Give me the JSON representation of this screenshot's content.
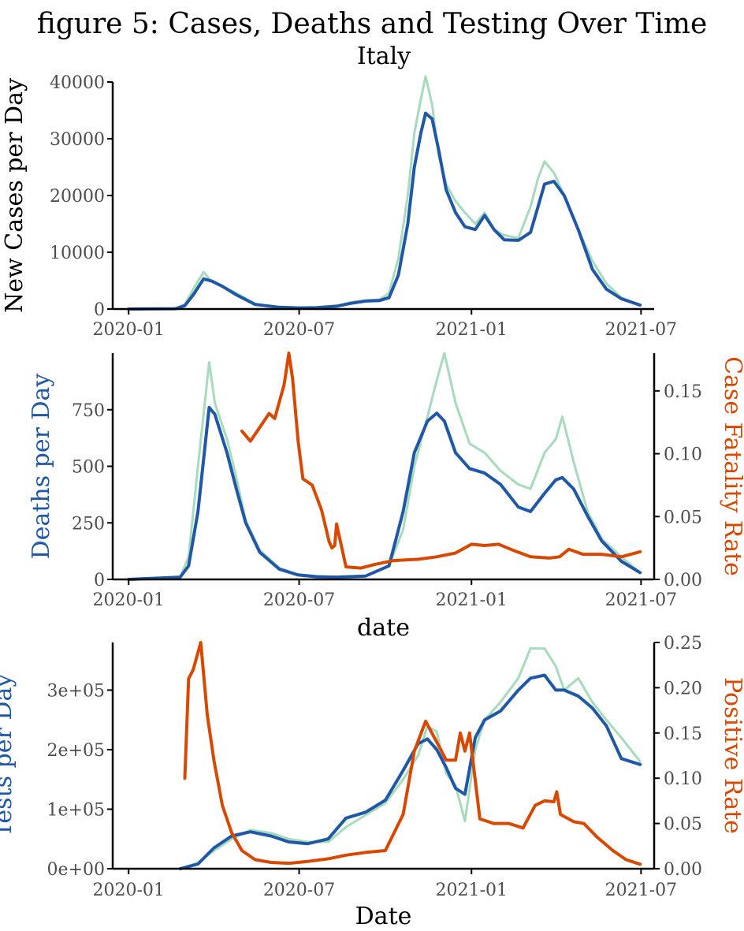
{
  "title": "figure 5: Cases, Deaths and Testing Over Time",
  "subtitle": "Italy",
  "colors": {
    "raw": "#a6dbbb",
    "smooth": "#2058a8",
    "rate": "#d94801",
    "axis": "#000000",
    "tick_text": "#4d4d4d"
  },
  "chart_data": [
    {
      "type": "line",
      "id": "cases",
      "xlabel": "",
      "ylabel": "New Cases per Day",
      "x_ticks": [
        "2020-01",
        "2020-07",
        "2021-01",
        "2021-07"
      ],
      "x_tick_dates": [
        "2020-01-01",
        "2020-07-01",
        "2021-01-01",
        "2021-07-01"
      ],
      "xlim": [
        "2019-12-15",
        "2021-07-15"
      ],
      "ylim": [
        0,
        40000
      ],
      "y_ticks": [
        0,
        10000,
        20000,
        30000,
        40000
      ],
      "y_tick_labels": [
        "0",
        "10000",
        "20000",
        "30000",
        "40000"
      ],
      "grid": false,
      "series": [
        {
          "role": "raw",
          "x": [
            "2020-01-01",
            "2020-02-20",
            "2020-03-01",
            "2020-03-10",
            "2020-03-21",
            "2020-03-30",
            "2020-04-10",
            "2020-04-25",
            "2020-05-15",
            "2020-06-10",
            "2020-07-01",
            "2020-07-20",
            "2020-08-10",
            "2020-08-25",
            "2020-09-10",
            "2020-09-25",
            "2020-10-05",
            "2020-10-15",
            "2020-10-25",
            "2020-11-01",
            "2020-11-08",
            "2020-11-13",
            "2020-11-20",
            "2020-11-27",
            "2020-12-05",
            "2020-12-15",
            "2020-12-25",
            "2021-01-05",
            "2021-01-15",
            "2021-01-25",
            "2021-02-05",
            "2021-02-20",
            "2021-03-05",
            "2021-03-13",
            "2021-03-20",
            "2021-03-30",
            "2021-04-10",
            "2021-04-25",
            "2021-05-10",
            "2021-05-25",
            "2021-06-10",
            "2021-06-30"
          ],
          "y": [
            0,
            50,
            800,
            3500,
            6500,
            4800,
            4000,
            2800,
            900,
            300,
            200,
            250,
            500,
            1200,
            1500,
            1700,
            2800,
            9000,
            20000,
            31000,
            37000,
            41000,
            36000,
            27000,
            22000,
            19000,
            17000,
            15000,
            17000,
            14000,
            13000,
            12500,
            18000,
            23000,
            26000,
            24000,
            20000,
            14000,
            8500,
            4500,
            2000,
            600
          ]
        },
        {
          "role": "smooth",
          "x": [
            "2020-01-01",
            "2020-02-20",
            "2020-03-01",
            "2020-03-10",
            "2020-03-21",
            "2020-03-30",
            "2020-04-10",
            "2020-04-25",
            "2020-05-15",
            "2020-06-10",
            "2020-07-01",
            "2020-07-20",
            "2020-08-10",
            "2020-08-25",
            "2020-09-10",
            "2020-09-25",
            "2020-10-05",
            "2020-10-15",
            "2020-10-25",
            "2020-11-01",
            "2020-11-08",
            "2020-11-13",
            "2020-11-20",
            "2020-11-27",
            "2020-12-05",
            "2020-12-15",
            "2020-12-25",
            "2021-01-05",
            "2021-01-15",
            "2021-01-25",
            "2021-02-05",
            "2021-02-20",
            "2021-03-05",
            "2021-03-13",
            "2021-03-20",
            "2021-03-30",
            "2021-04-10",
            "2021-04-25",
            "2021-05-10",
            "2021-05-25",
            "2021-06-10",
            "2021-06-30"
          ],
          "y": [
            0,
            50,
            600,
            2500,
            5300,
            4900,
            4000,
            2500,
            800,
            300,
            200,
            250,
            500,
            1000,
            1400,
            1500,
            2000,
            6000,
            15000,
            25000,
            31000,
            34500,
            33500,
            28000,
            21000,
            17000,
            14500,
            14000,
            16500,
            14000,
            12200,
            12100,
            13500,
            18000,
            22000,
            22500,
            20000,
            14000,
            7000,
            3500,
            1800,
            700
          ]
        }
      ]
    },
    {
      "type": "line",
      "id": "deaths",
      "xlabel": "date",
      "ylabel": "Deaths per Day",
      "ylabel_right": "Case Fatality Rate",
      "x_ticks": [
        "2020-01",
        "2020-07",
        "2021-01",
        "2021-07"
      ],
      "x_tick_dates": [
        "2020-01-01",
        "2020-07-01",
        "2021-01-01",
        "2021-07-01"
      ],
      "xlim": [
        "2019-12-15",
        "2021-07-15"
      ],
      "ylim": [
        0,
        1000
      ],
      "y_ticks": [
        0,
        250,
        500,
        750
      ],
      "y_tick_labels": [
        "0",
        "250",
        "500",
        "750"
      ],
      "ylim_right": [
        0,
        0.18
      ],
      "y_ticks_right": [
        0,
        0.05,
        0.1,
        0.15
      ],
      "y_tick_labels_right": [
        "0.00",
        "0.05",
        "0.10",
        "0.15"
      ],
      "grid": false,
      "series": [
        {
          "role": "raw",
          "axis": "left",
          "x": [
            "2020-01-01",
            "2020-02-25",
            "2020-03-05",
            "2020-03-15",
            "2020-03-27",
            "2020-04-02",
            "2020-04-15",
            "2020-04-25",
            "2020-05-05",
            "2020-05-20",
            "2020-06-10",
            "2020-06-30",
            "2020-07-20",
            "2020-08-10",
            "2020-09-10",
            "2020-10-05",
            "2020-10-20",
            "2020-11-01",
            "2020-11-15",
            "2020-11-25",
            "2020-12-03",
            "2020-12-15",
            "2020-12-30",
            "2021-01-15",
            "2021-02-01",
            "2021-02-20",
            "2021-03-05",
            "2021-03-20",
            "2021-04-01",
            "2021-04-08",
            "2021-04-20",
            "2021-05-05",
            "2021-05-20",
            "2021-06-10",
            "2021-06-30"
          ],
          "y": [
            0,
            10,
            100,
            500,
            960,
            780,
            620,
            450,
            260,
            130,
            50,
            20,
            15,
            10,
            15,
            60,
            220,
            500,
            720,
            880,
            1000,
            780,
            600,
            560,
            480,
            420,
            400,
            560,
            620,
            720,
            520,
            300,
            180,
            100,
            30
          ]
        },
        {
          "role": "smooth",
          "axis": "left",
          "x": [
            "2020-01-01",
            "2020-02-25",
            "2020-03-05",
            "2020-03-15",
            "2020-03-27",
            "2020-04-02",
            "2020-04-15",
            "2020-04-25",
            "2020-05-05",
            "2020-05-20",
            "2020-06-10",
            "2020-06-30",
            "2020-07-20",
            "2020-08-10",
            "2020-09-10",
            "2020-10-05",
            "2020-10-20",
            "2020-11-01",
            "2020-11-15",
            "2020-11-25",
            "2020-12-03",
            "2020-12-15",
            "2020-12-30",
            "2021-01-15",
            "2021-02-01",
            "2021-02-20",
            "2021-03-05",
            "2021-03-20",
            "2021-04-01",
            "2021-04-08",
            "2021-04-20",
            "2021-05-05",
            "2021-05-20",
            "2021-06-10",
            "2021-06-30"
          ],
          "y": [
            0,
            10,
            60,
            300,
            760,
            730,
            560,
            400,
            250,
            120,
            45,
            20,
            12,
            10,
            15,
            60,
            300,
            560,
            700,
            735,
            700,
            560,
            490,
            470,
            420,
            320,
            300,
            380,
            440,
            450,
            400,
            280,
            170,
            80,
            30
          ]
        },
        {
          "role": "rate",
          "axis": "right",
          "x": [
            "2020-05-01",
            "2020-05-10",
            "2020-05-20",
            "2020-05-30",
            "2020-06-05",
            "2020-06-15",
            "2020-06-20",
            "2020-06-24",
            "2020-06-30",
            "2020-07-05",
            "2020-07-15",
            "2020-07-25",
            "2020-08-02",
            "2020-08-05",
            "2020-08-08",
            "2020-08-10",
            "2020-08-20",
            "2020-09-05",
            "2020-09-20",
            "2020-10-10",
            "2020-11-05",
            "2020-11-25",
            "2020-12-15",
            "2021-01-01",
            "2021-01-15",
            "2021-01-30",
            "2021-02-15",
            "2021-03-05",
            "2021-03-25",
            "2021-04-05",
            "2021-04-15",
            "2021-04-30",
            "2021-05-20",
            "2021-06-10",
            "2021-06-30"
          ],
          "y": [
            0.118,
            0.11,
            0.121,
            0.132,
            0.128,
            0.155,
            0.18,
            0.16,
            0.11,
            0.08,
            0.075,
            0.055,
            0.03,
            0.025,
            0.027,
            0.044,
            0.01,
            0.009,
            0.012,
            0.015,
            0.016,
            0.018,
            0.021,
            0.028,
            0.027,
            0.028,
            0.023,
            0.018,
            0.017,
            0.018,
            0.024,
            0.02,
            0.02,
            0.018,
            0.022
          ]
        }
      ]
    },
    {
      "type": "line",
      "id": "tests",
      "xlabel": "Date",
      "ylabel": "Tests per Day",
      "ylabel_right": "Positive Rate",
      "x_ticks": [
        "2020-01",
        "2020-07",
        "2021-01",
        "2021-07"
      ],
      "x_tick_dates": [
        "2020-01-01",
        "2020-07-01",
        "2021-01-01",
        "2021-07-01"
      ],
      "xlim": [
        "2019-12-15",
        "2021-07-15"
      ],
      "ylim": [
        0,
        380000
      ],
      "y_ticks": [
        0,
        100000,
        200000,
        300000
      ],
      "y_tick_labels": [
        "0e+00",
        "1e+05",
        "2e+05",
        "3e+05"
      ],
      "ylim_right": [
        0,
        0.25
      ],
      "y_ticks_right": [
        0,
        0.05,
        0.1,
        0.15,
        0.2,
        0.25
      ],
      "y_tick_labels_right": [
        "0.00",
        "0.05",
        "0.10",
        "0.15",
        "0.20",
        "0.25"
      ],
      "grid": false,
      "series": [
        {
          "role": "raw",
          "axis": "left",
          "x": [
            "2020-02-25",
            "2020-03-15",
            "2020-04-01",
            "2020-04-20",
            "2020-05-10",
            "2020-06-01",
            "2020-06-20",
            "2020-07-10",
            "2020-08-01",
            "2020-08-20",
            "2020-09-10",
            "2020-10-01",
            "2020-10-20",
            "2020-11-05",
            "2020-11-15",
            "2020-11-25",
            "2020-12-05",
            "2020-12-15",
            "2020-12-25",
            "2021-01-05",
            "2021-01-15",
            "2021-02-01",
            "2021-02-20",
            "2021-03-05",
            "2021-03-20",
            "2021-04-01",
            "2021-04-10",
            "2021-04-25",
            "2021-05-10",
            "2021-05-25",
            "2021-06-10",
            "2021-06-30"
          ],
          "y": [
            0,
            10000,
            30000,
            50000,
            65000,
            60000,
            50000,
            45000,
            45000,
            70000,
            90000,
            110000,
            150000,
            190000,
            240000,
            230000,
            160000,
            140000,
            80000,
            200000,
            250000,
            280000,
            320000,
            370000,
            370000,
            340000,
            300000,
            320000,
            280000,
            250000,
            220000,
            180000
          ]
        },
        {
          "role": "smooth",
          "axis": "left",
          "x": [
            "2020-02-25",
            "2020-03-15",
            "2020-04-01",
            "2020-04-20",
            "2020-05-10",
            "2020-06-01",
            "2020-06-20",
            "2020-07-10",
            "2020-08-01",
            "2020-08-20",
            "2020-09-10",
            "2020-10-01",
            "2020-10-20",
            "2020-11-05",
            "2020-11-15",
            "2020-11-25",
            "2020-12-05",
            "2020-12-15",
            "2020-12-25",
            "2021-01-05",
            "2021-01-15",
            "2021-02-01",
            "2021-02-20",
            "2021-03-05",
            "2021-03-20",
            "2021-04-01",
            "2021-04-10",
            "2021-04-25",
            "2021-05-10",
            "2021-05-25",
            "2021-06-10",
            "2021-06-30"
          ],
          "y": [
            0,
            8000,
            35000,
            55000,
            62000,
            55000,
            45000,
            42000,
            50000,
            85000,
            95000,
            115000,
            165000,
            210000,
            218000,
            200000,
            170000,
            135000,
            125000,
            220000,
            250000,
            265000,
            300000,
            320000,
            325000,
            300000,
            300000,
            290000,
            270000,
            240000,
            185000,
            175000
          ]
        },
        {
          "role": "rate",
          "axis": "right",
          "x": [
            "2020-03-01",
            "2020-03-05",
            "2020-03-10",
            "2020-03-18",
            "2020-03-25",
            "2020-04-01",
            "2020-04-10",
            "2020-04-20",
            "2020-05-01",
            "2020-05-15",
            "2020-06-01",
            "2020-06-20",
            "2020-07-10",
            "2020-08-01",
            "2020-08-20",
            "2020-09-10",
            "2020-10-01",
            "2020-10-20",
            "2020-11-01",
            "2020-11-13",
            "2020-11-25",
            "2020-12-05",
            "2020-12-15",
            "2020-12-20",
            "2020-12-25",
            "2020-12-30",
            "2021-01-10",
            "2021-01-25",
            "2021-02-10",
            "2021-02-25",
            "2021-03-10",
            "2021-03-20",
            "2021-03-30",
            "2021-04-02",
            "2021-04-06",
            "2021-04-20",
            "2021-05-01",
            "2021-05-15",
            "2021-06-01",
            "2021-06-15",
            "2021-06-30"
          ],
          "y": [
            0.1,
            0.21,
            0.22,
            0.25,
            0.17,
            0.12,
            0.07,
            0.04,
            0.02,
            0.01,
            0.007,
            0.006,
            0.008,
            0.011,
            0.015,
            0.018,
            0.02,
            0.06,
            0.13,
            0.163,
            0.14,
            0.12,
            0.12,
            0.15,
            0.13,
            0.15,
            0.055,
            0.05,
            0.05,
            0.045,
            0.07,
            0.075,
            0.074,
            0.085,
            0.06,
            0.052,
            0.05,
            0.035,
            0.02,
            0.01,
            0.005
          ]
        }
      ]
    }
  ]
}
